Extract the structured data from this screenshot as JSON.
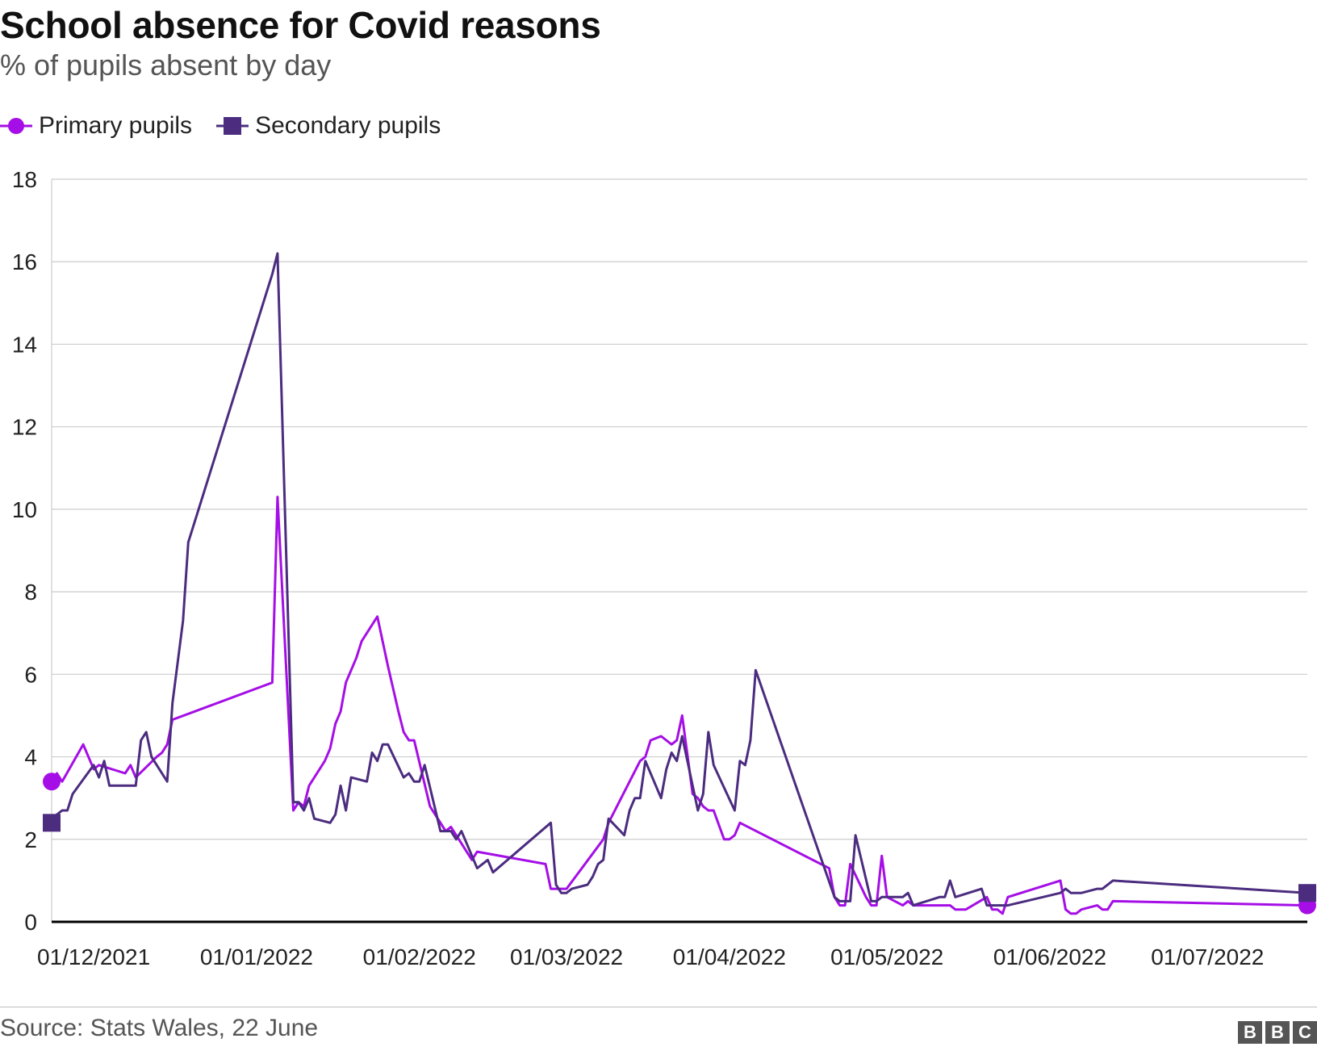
{
  "title": "School absence for Covid reasons",
  "subtitle": "% of pupils absent by day",
  "source": "Source: Stats Wales, 22 June",
  "logo": [
    "B",
    "B",
    "C"
  ],
  "colors": {
    "primary": "#a50ee6",
    "secondary": "#4b2c7f",
    "grid": "#cccccc",
    "axis": "#000000"
  },
  "chart_data": {
    "type": "line",
    "ylim": [
      0,
      18
    ],
    "yticks": [
      0,
      2,
      4,
      6,
      8,
      10,
      12,
      14,
      16,
      18
    ],
    "xlim": [
      "2021-11-23",
      "2022-07-20"
    ],
    "xticks": [
      {
        "date": "2021-12-01",
        "label": "01/12/2021"
      },
      {
        "date": "2022-01-01",
        "label": "01/01/2022"
      },
      {
        "date": "2022-02-01",
        "label": "01/02/2022"
      },
      {
        "date": "2022-03-01",
        "label": "01/03/2022"
      },
      {
        "date": "2022-04-01",
        "label": "01/04/2022"
      },
      {
        "date": "2022-05-01",
        "label": "01/05/2022"
      },
      {
        "date": "2022-06-01",
        "label": "01/06/2022"
      },
      {
        "date": "2022-07-01",
        "label": "01/07/2022"
      }
    ],
    "grid": true,
    "legend_position": "top-left",
    "series": [
      {
        "name": "Primary pupils",
        "marker": "circle",
        "points": [
          [
            "2021-11-23",
            3.4
          ],
          [
            "2021-11-24",
            3.6
          ],
          [
            "2021-11-25",
            3.4
          ],
          [
            "2021-11-29",
            4.3
          ],
          [
            "2021-11-30",
            4.0
          ],
          [
            "2021-12-01",
            3.7
          ],
          [
            "2021-12-02",
            3.8
          ],
          [
            "2021-12-07",
            3.6
          ],
          [
            "2021-12-08",
            3.8
          ],
          [
            "2021-12-09",
            3.5
          ],
          [
            "2021-12-13",
            4.0
          ],
          [
            "2021-12-14",
            4.1
          ],
          [
            "2021-12-15",
            4.3
          ],
          [
            "2021-12-16",
            4.9
          ],
          [
            "2022-01-04",
            5.8
          ],
          [
            "2022-01-05",
            10.3
          ],
          [
            "2022-01-08",
            2.7
          ],
          [
            "2022-01-09",
            2.9
          ],
          [
            "2022-01-10",
            2.8
          ],
          [
            "2022-01-11",
            3.3
          ],
          [
            "2022-01-14",
            3.9
          ],
          [
            "2022-01-15",
            4.2
          ],
          [
            "2022-01-16",
            4.8
          ],
          [
            "2022-01-17",
            5.1
          ],
          [
            "2022-01-18",
            5.8
          ],
          [
            "2022-01-20",
            6.4
          ],
          [
            "2022-01-21",
            6.8
          ],
          [
            "2022-01-24",
            7.4
          ],
          [
            "2022-01-26",
            6.2
          ],
          [
            "2022-01-28",
            5.1
          ],
          [
            "2022-01-29",
            4.6
          ],
          [
            "2022-01-30",
            4.4
          ],
          [
            "2022-01-31",
            4.4
          ],
          [
            "2022-02-03",
            2.8
          ],
          [
            "2022-02-06",
            2.2
          ],
          [
            "2022-02-07",
            2.3
          ],
          [
            "2022-02-11",
            1.5
          ],
          [
            "2022-02-12",
            1.7
          ],
          [
            "2022-02-25",
            1.4
          ],
          [
            "2022-02-26",
            0.8
          ],
          [
            "2022-02-27",
            0.8
          ],
          [
            "2022-03-01",
            0.8
          ],
          [
            "2022-03-08",
            2.0
          ],
          [
            "2022-03-09",
            2.4
          ],
          [
            "2022-03-15",
            3.9
          ],
          [
            "2022-03-16",
            4.0
          ],
          [
            "2022-03-17",
            4.4
          ],
          [
            "2022-03-19",
            4.5
          ],
          [
            "2022-03-21",
            4.3
          ],
          [
            "2022-03-22",
            4.4
          ],
          [
            "2022-03-23",
            5.0
          ],
          [
            "2022-03-25",
            3.1
          ],
          [
            "2022-03-26",
            3.0
          ],
          [
            "2022-03-27",
            2.8
          ],
          [
            "2022-03-28",
            2.7
          ],
          [
            "2022-03-29",
            2.7
          ],
          [
            "2022-03-31",
            2.0
          ],
          [
            "2022-04-01",
            2.0
          ],
          [
            "2022-04-02",
            2.1
          ],
          [
            "2022-04-03",
            2.4
          ],
          [
            "2022-04-20",
            1.3
          ],
          [
            "2022-04-21",
            0.6
          ],
          [
            "2022-04-22",
            0.4
          ],
          [
            "2022-04-23",
            0.4
          ],
          [
            "2022-04-24",
            1.4
          ],
          [
            "2022-04-27",
            0.6
          ],
          [
            "2022-04-28",
            0.4
          ],
          [
            "2022-04-29",
            0.4
          ],
          [
            "2022-04-30",
            1.6
          ],
          [
            "2022-05-01",
            0.6
          ],
          [
            "2022-05-04",
            0.4
          ],
          [
            "2022-05-05",
            0.5
          ],
          [
            "2022-05-06",
            0.4
          ],
          [
            "2022-05-13",
            0.4
          ],
          [
            "2022-05-14",
            0.3
          ],
          [
            "2022-05-16",
            0.3
          ],
          [
            "2022-05-20",
            0.6
          ],
          [
            "2022-05-21",
            0.3
          ],
          [
            "2022-05-22",
            0.3
          ],
          [
            "2022-05-23",
            0.2
          ],
          [
            "2022-05-24",
            0.6
          ],
          [
            "2022-06-03",
            1.0
          ],
          [
            "2022-06-04",
            0.3
          ],
          [
            "2022-06-05",
            0.2
          ],
          [
            "2022-06-06",
            0.2
          ],
          [
            "2022-06-07",
            0.3
          ],
          [
            "2022-06-10",
            0.4
          ],
          [
            "2022-06-11",
            0.3
          ],
          [
            "2022-06-12",
            0.3
          ],
          [
            "2022-06-13",
            0.5
          ],
          [
            "2022-07-20",
            0.4
          ]
        ]
      },
      {
        "name": "Secondary pupils",
        "marker": "square",
        "points": [
          [
            "2021-11-23",
            2.4
          ],
          [
            "2021-11-24",
            2.6
          ],
          [
            "2021-11-25",
            2.7
          ],
          [
            "2021-11-26",
            2.7
          ],
          [
            "2021-11-27",
            3.1
          ],
          [
            "2021-12-01",
            3.8
          ],
          [
            "2021-12-02",
            3.5
          ],
          [
            "2021-12-03",
            3.9
          ],
          [
            "2021-12-04",
            3.3
          ],
          [
            "2021-12-09",
            3.3
          ],
          [
            "2021-12-10",
            4.4
          ],
          [
            "2021-12-11",
            4.6
          ],
          [
            "2021-12-12",
            4.0
          ],
          [
            "2021-12-15",
            3.4
          ],
          [
            "2021-12-16",
            5.3
          ],
          [
            "2021-12-18",
            7.3
          ],
          [
            "2021-12-19",
            9.2
          ],
          [
            "2022-01-04",
            15.7
          ],
          [
            "2022-01-05",
            16.2
          ],
          [
            "2022-01-08",
            2.9
          ],
          [
            "2022-01-09",
            2.9
          ],
          [
            "2022-01-10",
            2.7
          ],
          [
            "2022-01-11",
            3.0
          ],
          [
            "2022-01-12",
            2.5
          ],
          [
            "2022-01-15",
            2.4
          ],
          [
            "2022-01-16",
            2.6
          ],
          [
            "2022-01-17",
            3.3
          ],
          [
            "2022-01-18",
            2.7
          ],
          [
            "2022-01-19",
            3.5
          ],
          [
            "2022-01-22",
            3.4
          ],
          [
            "2022-01-23",
            4.1
          ],
          [
            "2022-01-24",
            3.9
          ],
          [
            "2022-01-25",
            4.3
          ],
          [
            "2022-01-26",
            4.3
          ],
          [
            "2022-01-29",
            3.5
          ],
          [
            "2022-01-30",
            3.6
          ],
          [
            "2022-01-31",
            3.4
          ],
          [
            "2022-02-01",
            3.4
          ],
          [
            "2022-02-02",
            3.8
          ],
          [
            "2022-02-05",
            2.2
          ],
          [
            "2022-02-07",
            2.2
          ],
          [
            "2022-02-08",
            2.0
          ],
          [
            "2022-02-09",
            2.2
          ],
          [
            "2022-02-12",
            1.3
          ],
          [
            "2022-02-14",
            1.5
          ],
          [
            "2022-02-15",
            1.2
          ],
          [
            "2022-02-26",
            2.4
          ],
          [
            "2022-02-27",
            0.9
          ],
          [
            "2022-02-28",
            0.7
          ],
          [
            "2022-03-01",
            0.7
          ],
          [
            "2022-03-02",
            0.8
          ],
          [
            "2022-03-05",
            0.9
          ],
          [
            "2022-03-06",
            1.1
          ],
          [
            "2022-03-07",
            1.4
          ],
          [
            "2022-03-08",
            1.5
          ],
          [
            "2022-03-09",
            2.5
          ],
          [
            "2022-03-12",
            2.1
          ],
          [
            "2022-03-13",
            2.7
          ],
          [
            "2022-03-14",
            3.0
          ],
          [
            "2022-03-15",
            3.0
          ],
          [
            "2022-03-16",
            3.9
          ],
          [
            "2022-03-19",
            3.0
          ],
          [
            "2022-03-20",
            3.7
          ],
          [
            "2022-03-21",
            4.1
          ],
          [
            "2022-03-22",
            3.9
          ],
          [
            "2022-03-23",
            4.5
          ],
          [
            "2022-03-26",
            2.7
          ],
          [
            "2022-03-27",
            3.1
          ],
          [
            "2022-03-28",
            4.6
          ],
          [
            "2022-03-29",
            3.8
          ],
          [
            "2022-04-02",
            2.7
          ],
          [
            "2022-04-03",
            3.9
          ],
          [
            "2022-04-04",
            3.8
          ],
          [
            "2022-04-05",
            4.4
          ],
          [
            "2022-04-06",
            6.1
          ],
          [
            "2022-04-21",
            0.6
          ],
          [
            "2022-04-22",
            0.5
          ],
          [
            "2022-04-24",
            0.5
          ],
          [
            "2022-04-25",
            2.1
          ],
          [
            "2022-04-28",
            0.5
          ],
          [
            "2022-04-29",
            0.5
          ],
          [
            "2022-04-30",
            0.6
          ],
          [
            "2022-05-03",
            0.6
          ],
          [
            "2022-05-04",
            0.6
          ],
          [
            "2022-05-05",
            0.7
          ],
          [
            "2022-05-06",
            0.4
          ],
          [
            "2022-05-11",
            0.6
          ],
          [
            "2022-05-12",
            0.6
          ],
          [
            "2022-05-13",
            1.0
          ],
          [
            "2022-05-14",
            0.6
          ],
          [
            "2022-05-19",
            0.8
          ],
          [
            "2022-05-20",
            0.4
          ],
          [
            "2022-05-24",
            0.4
          ],
          [
            "2022-06-03",
            0.7
          ],
          [
            "2022-06-04",
            0.8
          ],
          [
            "2022-06-05",
            0.7
          ],
          [
            "2022-06-07",
            0.7
          ],
          [
            "2022-06-10",
            0.8
          ],
          [
            "2022-06-11",
            0.8
          ],
          [
            "2022-06-13",
            1.0
          ],
          [
            "2022-07-20",
            0.7
          ]
        ]
      }
    ]
  }
}
